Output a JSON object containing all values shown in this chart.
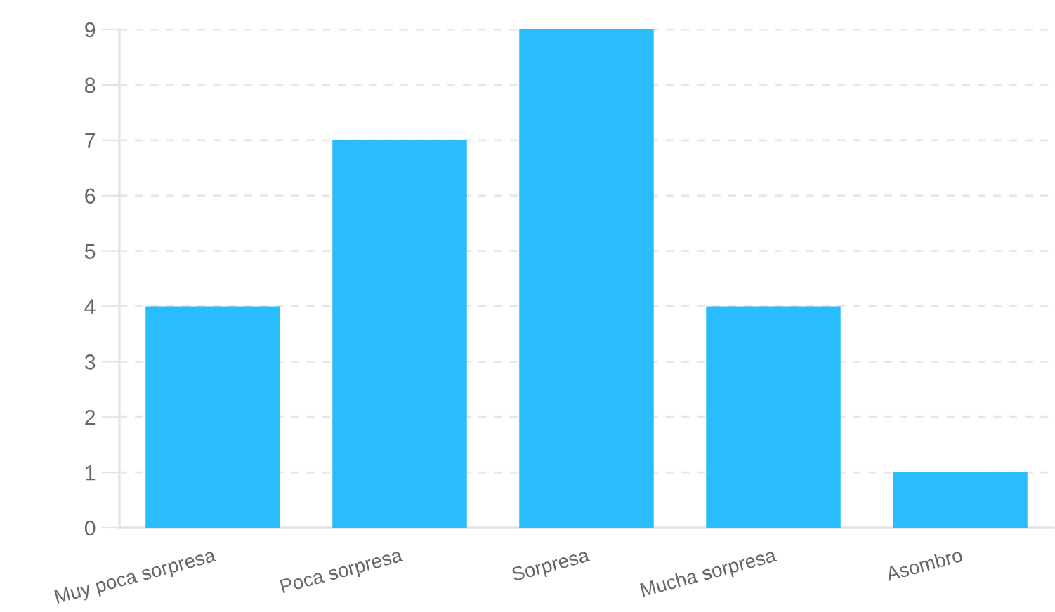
{
  "chart_data": {
    "type": "bar",
    "categories": [
      "Muy poca sorpresa",
      "Poca sorpresa",
      "Sorpresa",
      "Mucha sorpresa",
      "Asombro"
    ],
    "values": [
      4,
      7,
      9,
      4,
      1
    ],
    "color": "#29bdfd",
    "ylim": [
      0,
      9
    ],
    "yticks": [
      0,
      1,
      2,
      3,
      4,
      5,
      6,
      7,
      8,
      9
    ],
    "grid": "y",
    "legend": false
  }
}
